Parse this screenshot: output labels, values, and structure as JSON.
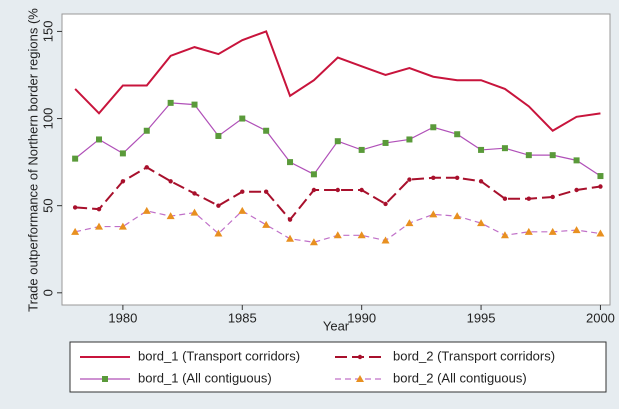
{
  "chart_data": {
    "type": "line",
    "x": [
      1978,
      1979,
      1980,
      1981,
      1982,
      1983,
      1984,
      1985,
      1986,
      1987,
      1988,
      1989,
      1990,
      1991,
      1992,
      1993,
      1994,
      1995,
      1996,
      1997,
      1998,
      1999,
      2000
    ],
    "xlabel": "Year",
    "ylabel": "Trade outperformance of Northern border regions (%",
    "xlim": [
      1977.45,
      2000.4
    ],
    "xticks": [
      1980,
      1985,
      1990,
      1995,
      2000
    ],
    "ylim": [
      -7,
      160
    ],
    "yticks": [
      0,
      50,
      100,
      150
    ],
    "grid": false,
    "legend": "bottom",
    "series": [
      {
        "name": "bord_1 (Transport corridors)",
        "color": "#c8143c",
        "dash": "solid",
        "marker": "none",
        "values": [
          117,
          103,
          119,
          119,
          136,
          141,
          137,
          145,
          150,
          113,
          122,
          135,
          130,
          125,
          129,
          124,
          122,
          122,
          117,
          107,
          93,
          101,
          103
        ]
      },
      {
        "name": "bord_2 (Transport corridors)",
        "color": "#a8102c",
        "dash": "long",
        "marker": "circle",
        "marker_color": "#a8102c",
        "values": [
          49,
          48,
          64,
          72,
          64,
          57,
          50,
          58,
          58,
          42,
          59,
          59,
          59,
          51,
          65,
          66,
          66,
          64,
          54,
          54,
          55,
          59,
          61
        ]
      },
      {
        "name": "bord_1 (All contiguous)",
        "color": "#b050b8",
        "dash": "solid",
        "marker": "square",
        "marker_color": "#5a9a3a",
        "values": [
          77,
          88,
          80,
          93,
          109,
          108,
          90,
          100,
          93,
          75,
          68,
          87,
          82,
          86,
          88,
          95,
          91,
          82,
          83,
          79,
          79,
          76,
          67
        ]
      },
      {
        "name": "bord_2 (All contiguous)",
        "color": "#c070c8",
        "dash": "short",
        "marker": "triangle",
        "marker_color": "#e89020",
        "values": [
          35,
          38,
          38,
          47,
          44,
          46,
          34,
          47,
          39,
          31,
          29,
          33,
          33,
          30,
          40,
          45,
          44,
          40,
          33,
          35,
          35,
          36,
          34
        ]
      }
    ]
  }
}
